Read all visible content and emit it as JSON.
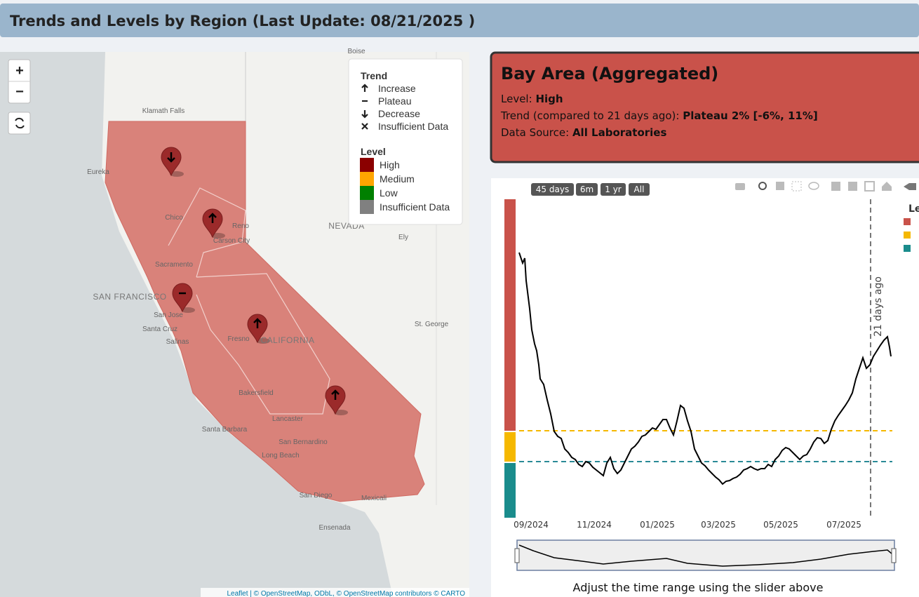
{
  "header": {
    "title": "Trends and Levels by Region (Last Update: 08/21/2025 )"
  },
  "map": {
    "labels": [
      {
        "text": "Klamath Falls",
        "kind": "city"
      },
      {
        "text": "Eureka",
        "kind": "city"
      },
      {
        "text": "Chico",
        "kind": "city"
      },
      {
        "text": "Reno",
        "kind": "city"
      },
      {
        "text": "Carson City",
        "kind": "city"
      },
      {
        "text": "Sacramento",
        "kind": "city"
      },
      {
        "text": "SAN FRANCISCO",
        "kind": "state"
      },
      {
        "text": "San Jose",
        "kind": "city"
      },
      {
        "text": "Santa Cruz",
        "kind": "city"
      },
      {
        "text": "Salinas",
        "kind": "city"
      },
      {
        "text": "Fresno",
        "kind": "city"
      },
      {
        "text": "CALIFORNIA",
        "kind": "state"
      },
      {
        "text": "Bakersfield",
        "kind": "city"
      },
      {
        "text": "Lancaster",
        "kind": "city"
      },
      {
        "text": "Santa Barbara",
        "kind": "city"
      },
      {
        "text": "San Bernardino",
        "kind": "city"
      },
      {
        "text": "Long Beach",
        "kind": "city"
      },
      {
        "text": "San Diego",
        "kind": "city"
      },
      {
        "text": "Mexicali",
        "kind": "city"
      },
      {
        "text": "Ensenada",
        "kind": "city"
      },
      {
        "text": "NEVADA",
        "kind": "state"
      },
      {
        "text": "Ely",
        "kind": "city"
      },
      {
        "text": "St. George",
        "kind": "city"
      },
      {
        "text": "Boise",
        "kind": "city"
      }
    ],
    "legend": {
      "trend_title": "Trend",
      "trend_items": [
        "Increase",
        "Plateau",
        "Decrease",
        "Insufficient Data"
      ],
      "level_title": "Level",
      "level_items": [
        {
          "label": "High",
          "color": "#8b0000"
        },
        {
          "label": "Medium",
          "color": "#ffa500"
        },
        {
          "label": "Low",
          "color": "#008000"
        },
        {
          "label": "Insufficient Data",
          "color": "#808080"
        }
      ]
    },
    "attribution": "Leaflet | © OpenStreetMap, ODbL, © OpenStreetMap contributors © CARTO"
  },
  "panel": {
    "title": "Bay Area (Aggregated)",
    "level_label": "Level:",
    "level_value": "High",
    "trend_label": "Trend (compared to 21 days ago):",
    "trend_value": "Plateau 2% [-6%, 11%]",
    "source_label": "Data Source:",
    "source_value": "All Laboratories"
  },
  "chart": {
    "range_buttons": [
      "45 days",
      "6m",
      "1 yr",
      "All"
    ],
    "xtick_labels": [
      "09/2024",
      "11/2024",
      "01/2025",
      "03/2025",
      "05/2025",
      "07/2025"
    ],
    "annotation": "21 days ago",
    "legend_title": "Le",
    "level_colors": [
      "#c9524a",
      "#f5b800",
      "#1a8c8c"
    ],
    "slider_caption": "Adjust the time range using the slider above"
  }
}
